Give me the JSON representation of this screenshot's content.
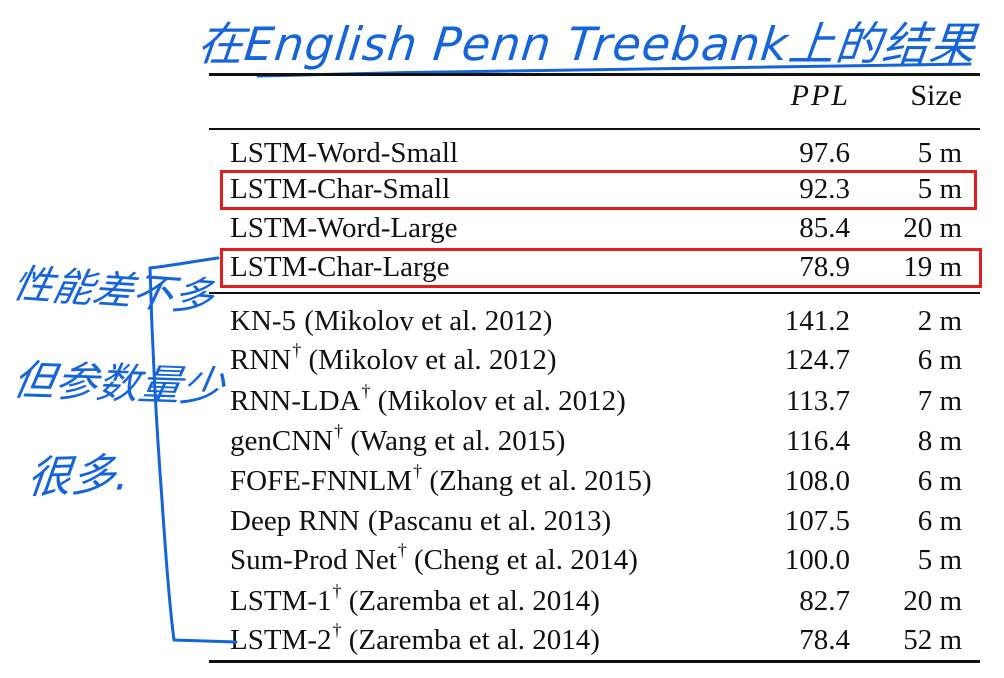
{
  "annotation": {
    "title_note": "在English Penn Treebank上的结果",
    "side_note": [
      "性能差不多",
      "但参数量少",
      "很多."
    ],
    "ink_color": "#1565d8",
    "highlight_color": "#e02020"
  },
  "table": {
    "headers": {
      "model": "",
      "ppl": "PPL",
      "size": "Size"
    },
    "group1": [
      {
        "model": "LSTM-Word-Small",
        "dagger": "",
        "cite": "",
        "ppl": "97.6",
        "size": "5 m",
        "highlight": false
      },
      {
        "model": "LSTM-Char-Small",
        "dagger": "",
        "cite": "",
        "ppl": "92.3",
        "size": "5 m",
        "highlight": true
      },
      {
        "model": "LSTM-Word-Large",
        "dagger": "",
        "cite": "",
        "ppl": "85.4",
        "size": "20 m",
        "highlight": false
      },
      {
        "model": "LSTM-Char-Large",
        "dagger": "",
        "cite": "",
        "ppl": "78.9",
        "size": "19 m",
        "highlight": true
      }
    ],
    "group2": [
      {
        "model": "KN-5",
        "dagger": "",
        "cite": " (Mikolov et al. 2012)",
        "ppl": "141.2",
        "size": "2 m"
      },
      {
        "model": "RNN",
        "dagger": "†",
        "cite": " (Mikolov et al. 2012)",
        "ppl": "124.7",
        "size": "6 m"
      },
      {
        "model": "RNN-LDA",
        "dagger": "†",
        "cite": " (Mikolov et al. 2012)",
        "ppl": "113.7",
        "size": "7 m"
      },
      {
        "model": "genCNN",
        "dagger": "†",
        "cite": " (Wang et al. 2015)",
        "ppl": "116.4",
        "size": "8 m"
      },
      {
        "model": "FOFE-FNNLM",
        "dagger": "†",
        "cite": " (Zhang et al. 2015)",
        "ppl": "108.0",
        "size": "6 m"
      },
      {
        "model": "Deep RNN",
        "dagger": "",
        "cite": " (Pascanu et al. 2013)",
        "ppl": "107.5",
        "size": "6 m"
      },
      {
        "model": "Sum-Prod Net",
        "dagger": "†",
        "cite": " (Cheng et al. 2014)",
        "ppl": "100.0",
        "size": "5 m"
      },
      {
        "model": "LSTM-1",
        "dagger": "†",
        "cite": " (Zaremba et al. 2014)",
        "ppl": "82.7",
        "size": "20 m"
      },
      {
        "model": "LSTM-2",
        "dagger": "†",
        "cite": " (Zaremba et al. 2014)",
        "ppl": "78.4",
        "size": "52 m"
      }
    ]
  }
}
